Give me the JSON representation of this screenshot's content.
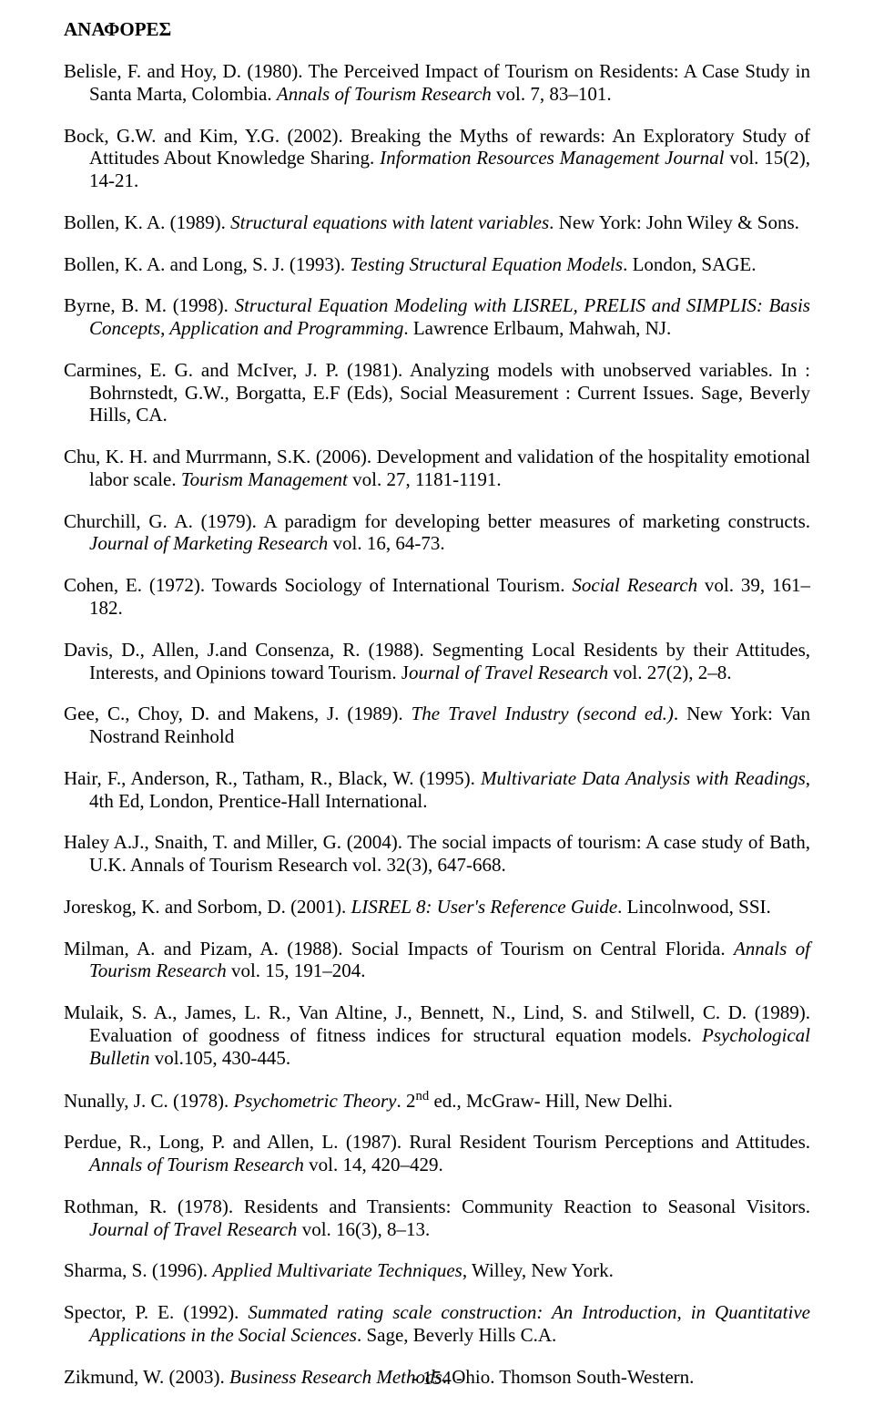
{
  "heading": "ΑΝΑΦΟΡΕΣ",
  "pageNumber": "- 154 -",
  "refs": [
    {
      "pre": "Belisle, F. and Hoy, D. (1980). The Perceived Impact of Tourism on Residents: A Case Study in Santa Marta, Colombia. ",
      "i": "Annals of Tourism Research",
      "post": " vol. 7, 83–101."
    },
    {
      "pre": "Bock, G.W. and Kim, Y.G. (2002). Breaking the Myths of rewards: An Exploratory Study of Attitudes About Knowledge Sharing. ",
      "i": "Information Resources Management Journal",
      "post": " vol. 15(2), 14-21."
    },
    {
      "pre": "Bollen, K. A. (1989). ",
      "i": "Structural equations with latent variables",
      "post": ". New York: John Wiley & Sons."
    },
    {
      "pre": "Bollen, K. A. and Long, S. J. (1993). ",
      "i": "Testing Structural Equation Models",
      "post": ". London, SAGE."
    },
    {
      "pre": "Byrne, B. M. (1998). ",
      "i": "Structural Equation Modeling with LISREL, PRELIS and SIMPLIS: Basis Concepts, Application and Programming",
      "post": ". Lawrence Erlbaum, Mahwah, NJ."
    },
    {
      "pre": "Carmines, E. G. and McIver, J. P. (1981). Analyzing models with unobserved variables. In : Bohrnstedt, G.W., Borgatta, E.F (Eds), Social Measurement : Current Issues. Sage, Beverly Hills, CA.",
      "i": "",
      "post": ""
    },
    {
      "pre": "Chu, K. H. and Murrmann, S.K. (2006). Development and validation of the hospitality emotional labor scale. ",
      "i": "Tourism Management",
      "post": " vol. 27, 1181-1191."
    },
    {
      "pre": "Churchill, G. A. (1979). A paradigm for developing better measures of marketing constructs. ",
      "i": "Journal of Marketing Research",
      "post": " vol. 16, 64-73."
    },
    {
      "pre": "Cohen, E. (1972). Towards Sociology of International Tourism. ",
      "i": "Social Research",
      "post": " vol. 39, 161–182."
    },
    {
      "pre": "Davis, D., Allen, J.and Consenza, R. (1988). Segmenting Local Residents by their Attitudes, Interests, and Opinions toward Tourism. J",
      "i": "ournal of Travel Research",
      "post": " vol. 27(2), 2–8."
    },
    {
      "pre": "Gee, C., Choy, D. and Makens, J. (1989). ",
      "i": "The Travel Industry (second ed.)",
      "post": ". New York: Van Nostrand Reinhold"
    },
    {
      "pre": "Hair, F., Anderson, R., Tatham, R., Black, W. (1995). ",
      "i": "Multivariate Data Analysis with Readings",
      "post": ", 4th Ed, London, Prentice-Hall International."
    },
    {
      "pre": "Haley A.J., Snaith, T. and Miller, G. (2004). The social impacts of tourism: A case study of Bath, U.K. Annals of Tourism Research vol. 32(3), 647-668.",
      "i": "",
      "post": ""
    },
    {
      "pre": "Joreskog, K. and Sorbom, D. (2001). ",
      "i": "LISREL 8: User's Reference Guide",
      "post": ". Lincolnwood, SSI."
    },
    {
      "pre": "Milman, A. and Pizam, A. (1988). Social Impacts of Tourism on Central Florida. ",
      "i": "Annals of Tourism Research",
      "post": " vol. 15, 191–204."
    },
    {
      "pre": "Mulaik, S. A., James, L. R., Van Altine, J., Bennett, N., Lind, S. and Stilwell, C. D. (1989). Evaluation of goodness of fitness indices for structural equation models. ",
      "i": "Psychological Bulletin",
      "post": " vol.105, 430-445."
    },
    {
      "pre": "Nunally, J. C. (1978). ",
      "i": "Psychometric Theory",
      "post": ". 2",
      "sup": "nd",
      "post2": " ed., McGraw- Hill, New Delhi."
    },
    {
      "pre": "Perdue, R., Long, P. and Allen, L. (1987). Rural Resident Tourism Perceptions and Attitudes. ",
      "i": "Annals of Tourism Research",
      "post": " vol. 14, 420–429."
    },
    {
      "pre": "Rothman, R. (1978). Residents and Transients: Community Reaction to Seasonal Visitors. ",
      "i": "Journal of Travel Research",
      "post": " vol. 16(3), 8–13."
    },
    {
      "pre": "Sharma, S. (1996). ",
      "i": "Applied Multivariate Techniques",
      "post": ", Willey, New York."
    },
    {
      "pre": "Spector, P. E. (1992). ",
      "i": "Summated rating scale construction: An Introduction, in Quantitative Applications in the Social Sciences",
      "post": ". Sage, Beverly Hills C.A."
    },
    {
      "pre": "Zikmund, W. (2003). ",
      "i": "Business Research Methods",
      "post": ". Ohio. Thomson South-Western."
    }
  ]
}
